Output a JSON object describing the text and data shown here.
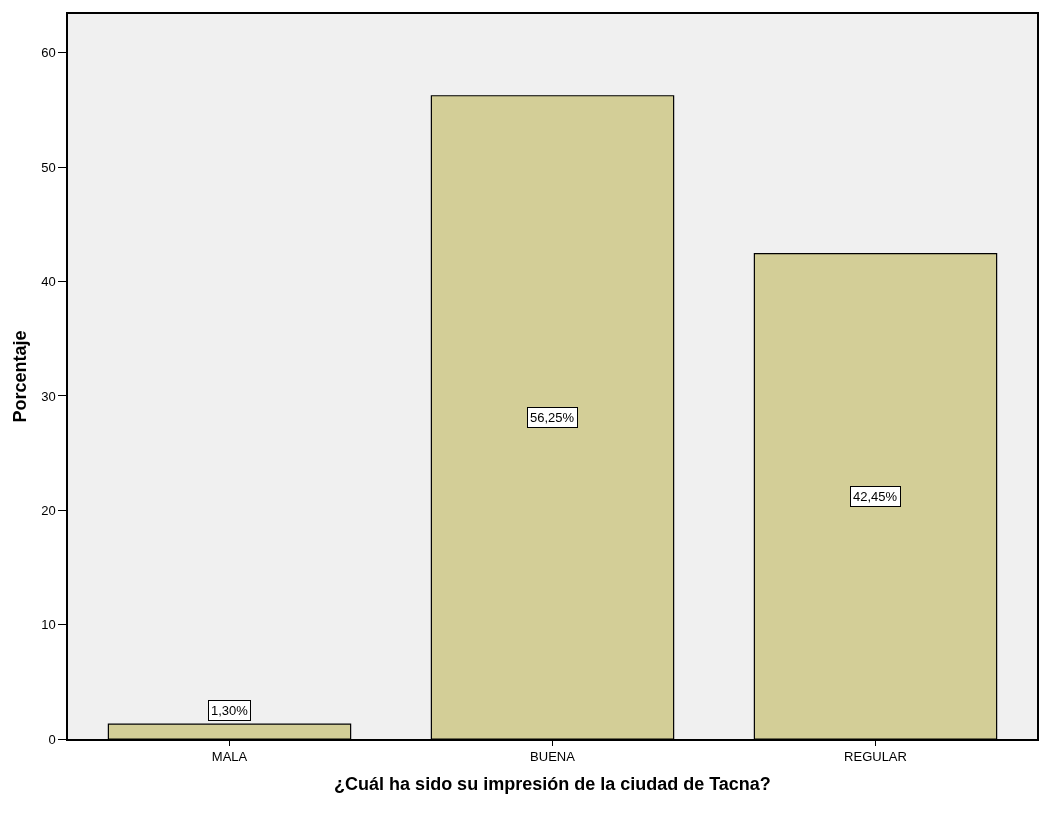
{
  "chart_data": {
    "type": "bar",
    "xlabel": "¿Cuál ha sido su impresión de la ciudad de Tacna?",
    "ylabel": "Porcentaje",
    "categories": [
      "MALA",
      "BUENA",
      "REGULAR"
    ],
    "values": [
      1.3,
      56.25,
      42.45
    ],
    "value_labels": [
      "1,30%",
      "56,25%",
      "42,45%"
    ],
    "color": "#d3ce97",
    "ylim": [
      0,
      63.4
    ],
    "yticks": [
      0,
      10,
      20,
      30,
      40,
      50,
      60
    ],
    "grid": false,
    "legend": false
  }
}
